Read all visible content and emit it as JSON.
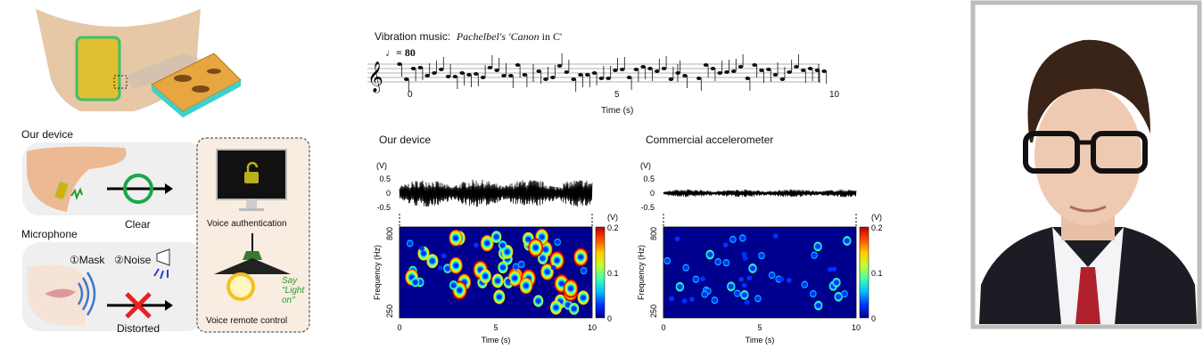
{
  "left_panel": {
    "our_device_label": "Our device",
    "microphone_label": "Microphone",
    "clear_label": "Clear",
    "distorted_label": "Distorted",
    "mask_label": "①Mask",
    "noise_label": "②Noise",
    "voice_auth_label": "Voice authentication",
    "voice_remote_label": "Voice remote control",
    "say_label": "Say",
    "light_label": "\"Light",
    "on_label": "on\""
  },
  "music": {
    "title_prefix": "Vibration music:",
    "title_piece_a": "Pachelbel's 'Canon",
    "title_piece_b": " in C'",
    "tempo": "= 80",
    "x_ticks": [
      "0",
      "5",
      "10"
    ],
    "xlabel": "Time (s)"
  },
  "chart_data": [
    {
      "type": "heatmap",
      "title": "Our device",
      "waveform_ylabel": "(V)",
      "waveform_yticks": [
        "0.5",
        "0",
        "-0.5"
      ],
      "ylabel": "Frequency (Hz)",
      "yticks": [
        "800",
        "250"
      ],
      "xlabel": "Time (s)",
      "xticks": [
        "0",
        "5",
        "10"
      ],
      "xlim": [
        0,
        10
      ],
      "ylim": [
        250,
        800
      ],
      "colorbar_label": "(V)",
      "colorbar_ticks": [
        "0.2",
        "0.1",
        "0"
      ],
      "waveform_amplitude": 0.35,
      "intensity": 1.0
    },
    {
      "type": "heatmap",
      "title": "Commercial accelerometer",
      "waveform_ylabel": "(V)",
      "waveform_yticks": [
        "0.5",
        "0",
        "-0.5"
      ],
      "ylabel": "Frequency (Hz)",
      "yticks": [
        "800",
        "250"
      ],
      "xlabel": "Time (s)",
      "xticks": [
        "0",
        "5",
        "10"
      ],
      "xlim": [
        0,
        10
      ],
      "ylim": [
        250,
        800
      ],
      "colorbar_label": "(V)",
      "colorbar_ticks": [
        "0.2",
        "0.1",
        "0"
      ],
      "waveform_amplitude": 0.1,
      "intensity": 0.45
    }
  ],
  "colors": {
    "spectro_bg": "#00008f",
    "clear_ring": "#1aa64a",
    "cross": "#e82020",
    "say_text": "#2b9a2b"
  }
}
